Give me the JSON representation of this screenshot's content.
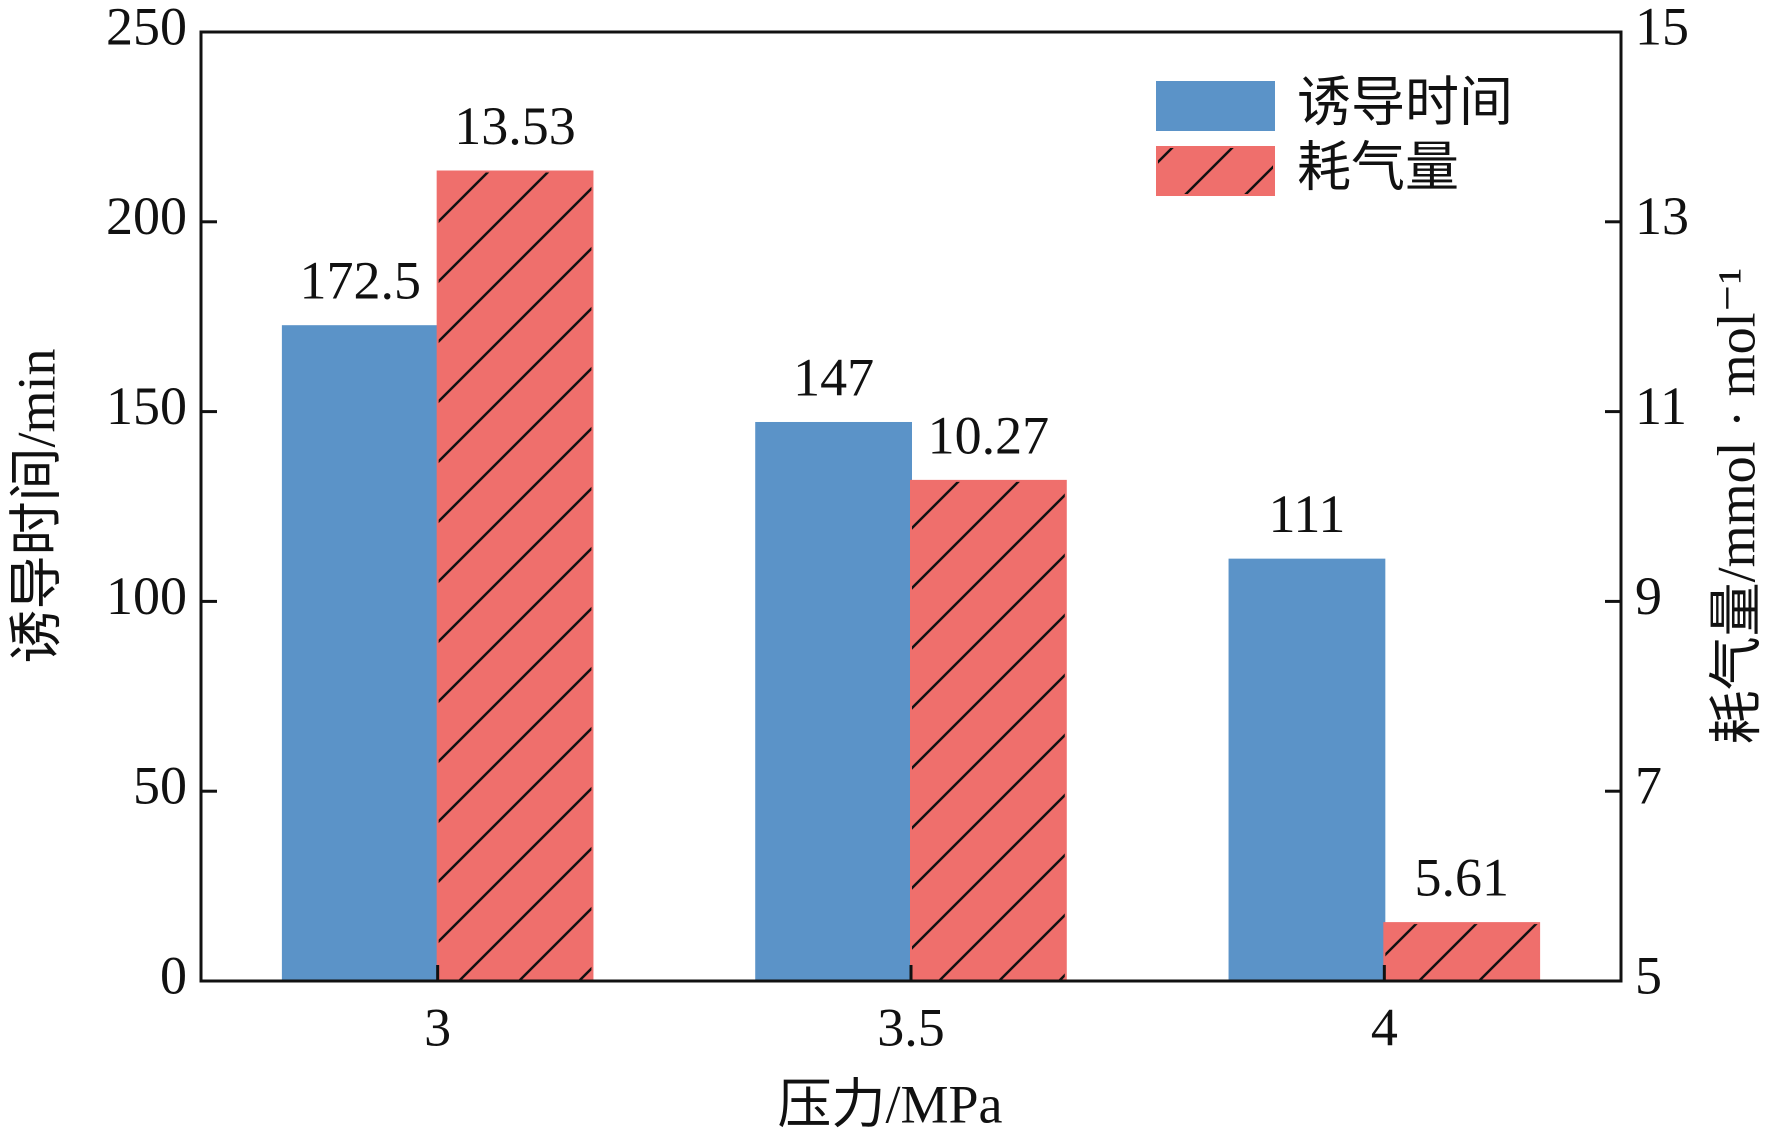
{
  "chart_data": {
    "type": "bar",
    "categories": [
      "3",
      "3.5",
      "4"
    ],
    "series": [
      {
        "name": "诱导时间",
        "color": "#5b93c8",
        "values": [
          172.5,
          147,
          111
        ]
      },
      {
        "name": "耗气量",
        "color": "#ef6f6c",
        "values": [
          13.53,
          10.27,
          5.61
        ],
        "axis": "y2",
        "hatch": true
      }
    ],
    "xlabel": "压力/MPa",
    "ylabel": "诱导时间/min",
    "y2label": "耗气量/mmol · mol⁻¹",
    "ylim": [
      0,
      250
    ],
    "yticks": [
      0,
      50,
      100,
      150,
      200,
      250
    ],
    "y2lim": [
      5,
      15
    ],
    "y2ticks": [
      5,
      7,
      9,
      11,
      13,
      15
    ],
    "legend": "upper right"
  }
}
